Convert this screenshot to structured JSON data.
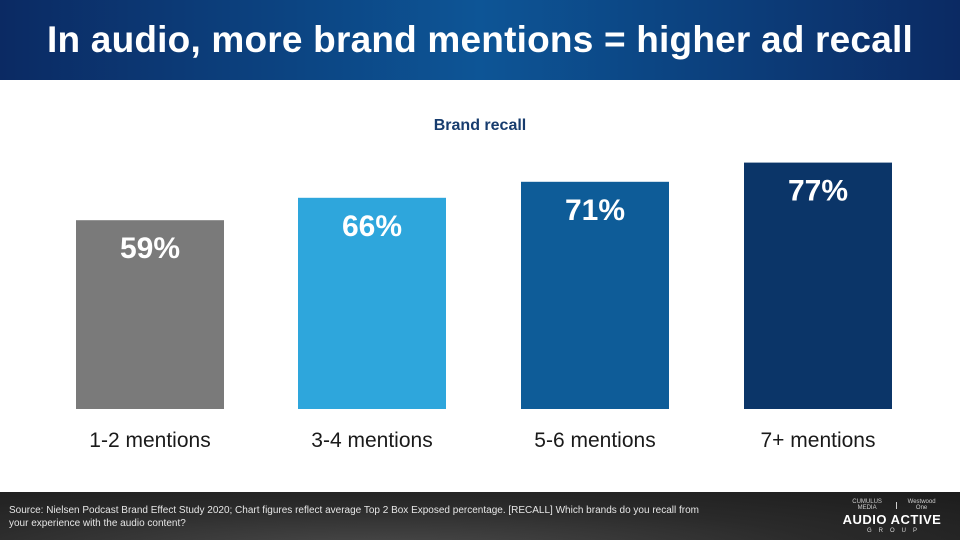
{
  "header": {
    "title": "In audio, more brand mentions = higher ad recall"
  },
  "chart_data": {
    "type": "bar",
    "title": "Brand recall",
    "categories": [
      "1-2 mentions",
      "3-4 mentions",
      "5-6 mentions",
      "7+ mentions"
    ],
    "values": [
      59,
      66,
      71,
      77
    ],
    "value_labels": [
      "59%",
      "66%",
      "71%",
      "77%"
    ],
    "colors": [
      "#7a7a7a",
      "#2ea6dc",
      "#0e5c98",
      "#0b3568"
    ],
    "ylim": [
      0,
      100
    ],
    "grid": false,
    "legend": "none"
  },
  "footer": {
    "source": "Source: Nielsen Podcast Brand Effect Study 2020; Chart figures reflect average Top 2 Box Exposed percentage. [RECALL] Which brands do you recall from your experience with the audio content?",
    "logo_brand_left": "CUMULUS MEDIA",
    "logo_brand_right": "Westwood One",
    "logo_main": "AUDIO ACTIVE",
    "logo_sub": "GROUP"
  }
}
